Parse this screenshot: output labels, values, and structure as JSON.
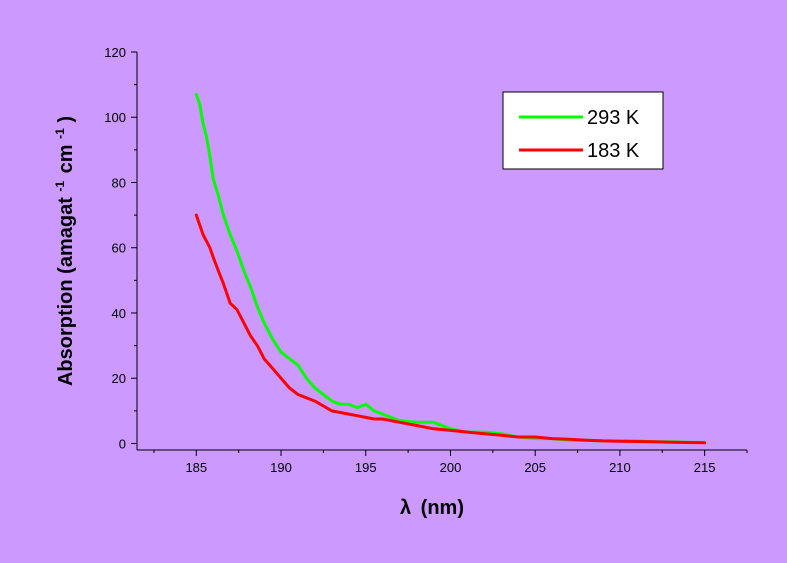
{
  "chart_data": {
    "type": "line",
    "xlabel_symbol": "λ",
    "xlabel_unit": "(nm)",
    "ylabel": "Absorption (amagat",
    "ylabel_sup1": "-1",
    "ylabel_mid": "cm",
    "ylabel_sup2": "-1",
    "ylabel_end": ")",
    "xlim": [
      181.5,
      217.5
    ],
    "ylim": [
      -2,
      120
    ],
    "x_ticks": [
      185,
      190,
      195,
      200,
      205,
      210,
      215
    ],
    "y_ticks": [
      0,
      20,
      40,
      60,
      80,
      100,
      120
    ],
    "grid": false,
    "legend_position": "top-right",
    "series": [
      {
        "name": "293 K",
        "color": "#00ff00",
        "x": [
          185.0,
          185.2,
          185.4,
          185.6,
          185.8,
          186.0,
          186.3,
          186.6,
          187.0,
          187.4,
          187.8,
          188.2,
          188.6,
          189.0,
          189.5,
          190.0,
          190.5,
          191.0,
          191.5,
          192.0,
          192.5,
          193.0,
          193.5,
          194.0,
          194.5,
          195.0,
          195.5,
          196.0,
          197.0,
          198.0,
          199.0,
          200.0,
          201.0,
          202.0,
          203.0,
          204.0,
          205.0,
          206.0,
          207.0,
          208.0,
          209.0,
          210.0,
          211.0,
          212.0,
          213.0,
          214.0,
          215.0
        ],
        "values": [
          107,
          104,
          98,
          94,
          88,
          81,
          76,
          70,
          64,
          59,
          53,
          48,
          42,
          37,
          32,
          28,
          26,
          24,
          20,
          17,
          15,
          13,
          12,
          12,
          11,
          12,
          10,
          9,
          7,
          6.5,
          6.5,
          4.5,
          3.5,
          3.5,
          3,
          2,
          1.5,
          1.5,
          1,
          1,
          0.8,
          0.8,
          0.8,
          0.5,
          0.5,
          0.4,
          0.3
        ]
      },
      {
        "name": "183 K",
        "color": "#ff0000",
        "x": [
          185.0,
          185.2,
          185.4,
          185.6,
          185.8,
          186.0,
          186.3,
          186.6,
          187.0,
          187.4,
          187.8,
          188.2,
          188.6,
          189.0,
          189.5,
          190.0,
          190.5,
          191.0,
          191.5,
          192.0,
          192.5,
          193.0,
          193.5,
          194.0,
          194.5,
          195.0,
          195.5,
          196.0,
          197.0,
          198.0,
          199.0,
          200.0,
          201.0,
          202.0,
          203.0,
          204.0,
          205.0,
          206.0,
          207.0,
          208.0,
          209.0,
          210.0,
          211.0,
          212.0,
          213.0,
          214.0,
          215.0
        ],
        "values": [
          70,
          67,
          64,
          62,
          60,
          57,
          53,
          49,
          43,
          41,
          37,
          33,
          30,
          26,
          23,
          20,
          17,
          15,
          14,
          13,
          11.5,
          10,
          9.5,
          9,
          8.5,
          8,
          7.5,
          7.5,
          6.5,
          5.5,
          4.5,
          4,
          3.5,
          3,
          2.5,
          2,
          2,
          1.5,
          1.3,
          1,
          0.8,
          0.7,
          0.6,
          0.5,
          0.4,
          0.3,
          0.2
        ]
      }
    ]
  }
}
